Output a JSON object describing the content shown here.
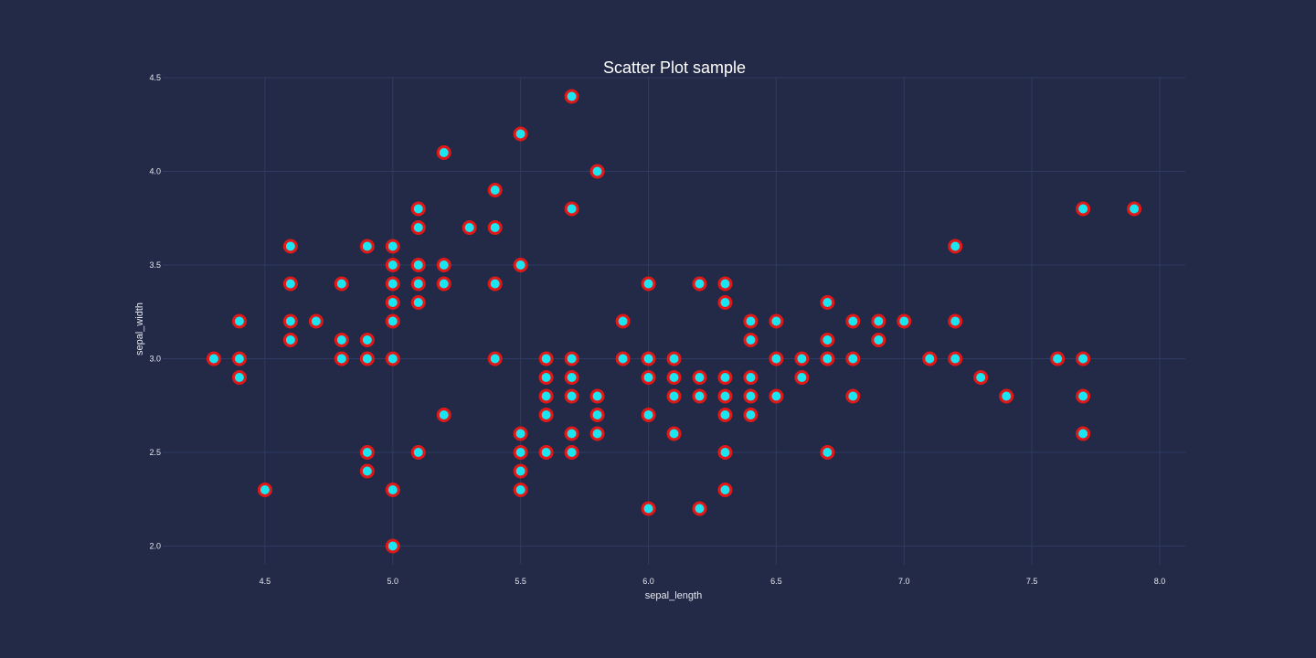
{
  "chart_data": {
    "type": "scatter",
    "title": "Scatter Plot sample",
    "xlabel": "sepal_length",
    "ylabel": "sepal_width",
    "xlim": [
      4.1,
      8.1
    ],
    "ylim": [
      1.9,
      4.5
    ],
    "xticks": [
      4.5,
      5.0,
      5.5,
      6.0,
      6.5,
      7.0,
      7.5,
      8.0
    ],
    "xtick_labels": [
      "4.5",
      "5.0",
      "5.5",
      "6.0",
      "6.5",
      "7.0",
      "7.5",
      "8.0"
    ],
    "yticks": [
      2.0,
      2.5,
      3.0,
      3.5,
      4.0,
      4.5
    ],
    "ytick_labels": [
      "2.0",
      "2.5",
      "3.0",
      "3.5",
      "4.0",
      "4.5"
    ],
    "grid": true,
    "marker_fill": "#19e6f0",
    "marker_edge": "#e01818",
    "background": "#222a47",
    "gridline_color": "#2f3b63",
    "points": [
      [
        4.3,
        3.0
      ],
      [
        4.4,
        3.2
      ],
      [
        4.4,
        3.0
      ],
      [
        4.4,
        2.9
      ],
      [
        4.5,
        2.3
      ],
      [
        4.6,
        3.6
      ],
      [
        4.6,
        3.4
      ],
      [
        4.6,
        3.2
      ],
      [
        4.6,
        3.1
      ],
      [
        4.7,
        3.2
      ],
      [
        4.8,
        3.4
      ],
      [
        4.8,
        3.1
      ],
      [
        4.8,
        3.0
      ],
      [
        4.9,
        3.6
      ],
      [
        4.9,
        3.1
      ],
      [
        4.9,
        3.0
      ],
      [
        4.9,
        2.5
      ],
      [
        4.9,
        2.4
      ],
      [
        5.0,
        3.6
      ],
      [
        5.0,
        3.5
      ],
      [
        5.0,
        3.4
      ],
      [
        5.0,
        3.3
      ],
      [
        5.0,
        3.2
      ],
      [
        5.0,
        3.0
      ],
      [
        5.0,
        2.3
      ],
      [
        5.0,
        2.0
      ],
      [
        5.1,
        3.8
      ],
      [
        5.1,
        3.7
      ],
      [
        5.1,
        3.5
      ],
      [
        5.1,
        3.4
      ],
      [
        5.1,
        3.3
      ],
      [
        5.1,
        2.5
      ],
      [
        5.2,
        4.1
      ],
      [
        5.2,
        3.5
      ],
      [
        5.2,
        3.4
      ],
      [
        5.2,
        2.7
      ],
      [
        5.3,
        3.7
      ],
      [
        5.4,
        3.9
      ],
      [
        5.4,
        3.7
      ],
      [
        5.4,
        3.4
      ],
      [
        5.4,
        3.0
      ],
      [
        5.5,
        4.2
      ],
      [
        5.5,
        3.5
      ],
      [
        5.5,
        2.6
      ],
      [
        5.5,
        2.5
      ],
      [
        5.5,
        2.4
      ],
      [
        5.5,
        2.3
      ],
      [
        5.6,
        3.0
      ],
      [
        5.6,
        2.9
      ],
      [
        5.6,
        2.8
      ],
      [
        5.6,
        2.7
      ],
      [
        5.6,
        2.5
      ],
      [
        5.7,
        4.4
      ],
      [
        5.7,
        3.8
      ],
      [
        5.7,
        3.0
      ],
      [
        5.7,
        2.9
      ],
      [
        5.7,
        2.8
      ],
      [
        5.7,
        2.6
      ],
      [
        5.7,
        2.5
      ],
      [
        5.8,
        4.0
      ],
      [
        5.8,
        2.8
      ],
      [
        5.8,
        2.7
      ],
      [
        5.8,
        2.6
      ],
      [
        5.9,
        3.2
      ],
      [
        5.9,
        3.0
      ],
      [
        6.0,
        3.4
      ],
      [
        6.0,
        3.0
      ],
      [
        6.0,
        2.9
      ],
      [
        6.0,
        2.7
      ],
      [
        6.0,
        2.2
      ],
      [
        6.1,
        3.0
      ],
      [
        6.1,
        2.9
      ],
      [
        6.1,
        2.8
      ],
      [
        6.1,
        2.6
      ],
      [
        6.2,
        3.4
      ],
      [
        6.2,
        2.9
      ],
      [
        6.2,
        2.8
      ],
      [
        6.2,
        2.2
      ],
      [
        6.3,
        3.4
      ],
      [
        6.3,
        3.3
      ],
      [
        6.3,
        2.9
      ],
      [
        6.3,
        2.8
      ],
      [
        6.3,
        2.7
      ],
      [
        6.3,
        2.5
      ],
      [
        6.3,
        2.3
      ],
      [
        6.4,
        3.2
      ],
      [
        6.4,
        3.1
      ],
      [
        6.4,
        2.9
      ],
      [
        6.4,
        2.8
      ],
      [
        6.4,
        2.7
      ],
      [
        6.5,
        3.2
      ],
      [
        6.5,
        3.0
      ],
      [
        6.5,
        2.8
      ],
      [
        6.6,
        3.0
      ],
      [
        6.6,
        2.9
      ],
      [
        6.7,
        3.3
      ],
      [
        6.7,
        3.1
      ],
      [
        6.7,
        3.0
      ],
      [
        6.7,
        2.5
      ],
      [
        6.8,
        3.2
      ],
      [
        6.8,
        3.0
      ],
      [
        6.8,
        2.8
      ],
      [
        6.9,
        3.2
      ],
      [
        6.9,
        3.1
      ],
      [
        7.0,
        3.2
      ],
      [
        7.1,
        3.0
      ],
      [
        7.2,
        3.6
      ],
      [
        7.2,
        3.2
      ],
      [
        7.2,
        3.0
      ],
      [
        7.3,
        2.9
      ],
      [
        7.4,
        2.8
      ],
      [
        7.6,
        3.0
      ],
      [
        7.7,
        3.8
      ],
      [
        7.7,
        3.0
      ],
      [
        7.7,
        2.8
      ],
      [
        7.7,
        2.6
      ],
      [
        7.9,
        3.8
      ]
    ]
  }
}
